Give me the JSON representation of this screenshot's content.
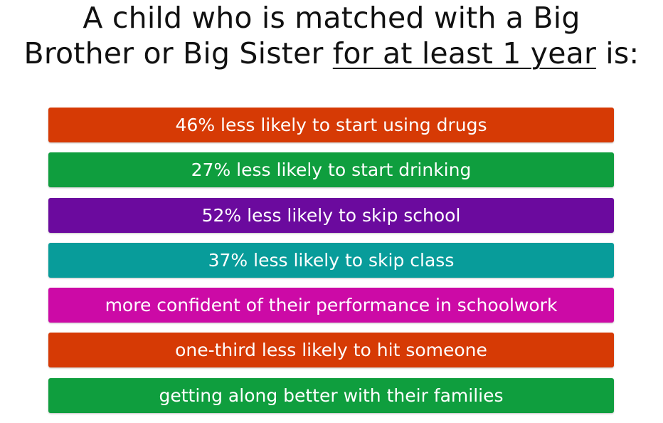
{
  "title": {
    "line1": "A child who is matched with a Big",
    "line2_prefix": "Brother or Big Sister",
    "line2_underlined": "for at least 1 year",
    "line2_suffix": "is:"
  },
  "items": [
    {
      "text": "46% less likely to start using drugs",
      "color": "#d63a05"
    },
    {
      "text": "27% less likely to start drinking",
      "color": "#0f9e3e"
    },
    {
      "text": "52% less likely to skip school",
      "color": "#6b0a9e"
    },
    {
      "text": "37% less likely to skip class",
      "color": "#089c9a"
    },
    {
      "text": "more confident of their performance in schoolwork",
      "color": "#cc0aa6"
    },
    {
      "text": "one-third less likely to hit someone",
      "color": "#d63a05"
    },
    {
      "text": "getting along better with their families",
      "color": "#0f9e3e"
    }
  ]
}
